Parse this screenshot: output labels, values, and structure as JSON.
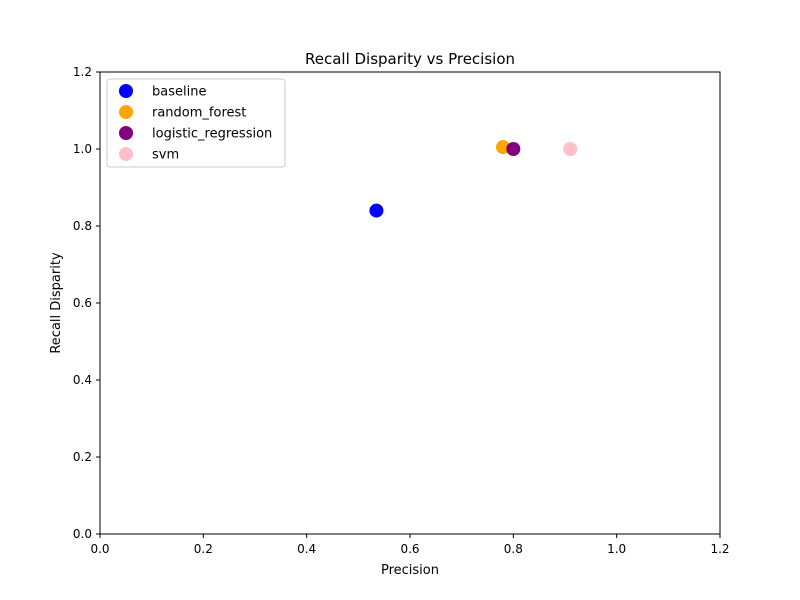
{
  "chart_data": {
    "type": "scatter",
    "title": "Recall Disparity vs Precision",
    "xlabel": "Precision",
    "ylabel": "Recall Disparity",
    "xlim": [
      0.0,
      1.2
    ],
    "ylim": [
      0.0,
      1.2
    ],
    "xticks": [
      "0.0",
      "0.2",
      "0.4",
      "0.6",
      "0.8",
      "1.0",
      "1.2"
    ],
    "yticks": [
      "0.0",
      "0.2",
      "0.4",
      "0.6",
      "0.8",
      "1.0",
      "1.2"
    ],
    "grid": false,
    "legend_position": "upper-left",
    "series": [
      {
        "name": "baseline",
        "color": "#0000ff",
        "points": [
          {
            "x": 0.535,
            "y": 0.84
          }
        ]
      },
      {
        "name": "random_forest",
        "color": "#ffa500",
        "points": [
          {
            "x": 0.78,
            "y": 1.005
          }
        ]
      },
      {
        "name": "logistic_regression",
        "color": "#800080",
        "points": [
          {
            "x": 0.8,
            "y": 1.0
          }
        ]
      },
      {
        "name": "svm",
        "color": "#ffc0cb",
        "points": [
          {
            "x": 0.91,
            "y": 1.0
          }
        ]
      }
    ]
  }
}
